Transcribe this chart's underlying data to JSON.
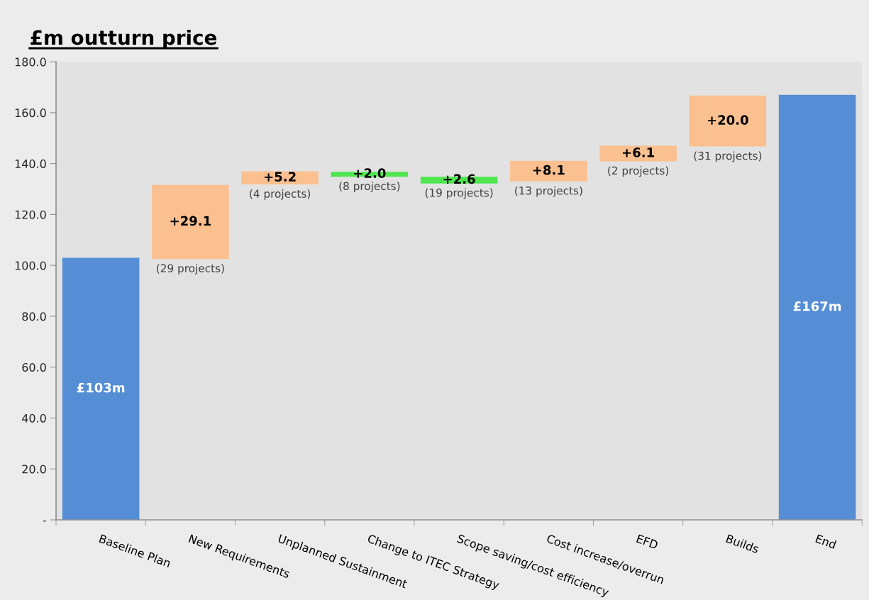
{
  "chart_data": {
    "type": "bar",
    "title": "£m outturn price",
    "categories": [
      "Baseline Plan",
      "New Requirements",
      "Unplanned Sustainment",
      "Change to ITEC Strategy",
      "Scope saving/cost efficiency",
      "Cost increase/overrun",
      "EFD",
      "Builds",
      "End"
    ],
    "values": [
      103,
      29.1,
      5.2,
      2.0,
      2.6,
      8.1,
      6.1,
      20.0,
      167
    ],
    "base": [
      0,
      102.5,
      131.8,
      134.8,
      132.2,
      133.0,
      140.9,
      146.7,
      0
    ],
    "colors": [
      "#558ed5",
      "#fac090",
      "#fac090",
      "#50e650",
      "#50e650",
      "#fac090",
      "#fac090",
      "#fac090",
      "#558ed5"
    ],
    "value_labels": [
      "£103m",
      "+29.1",
      "+5.2",
      "+2.0",
      "+2.6",
      "+8.1",
      "+6.1",
      "+20.0",
      "£167m"
    ],
    "annotations": [
      {
        "text": "(29 projects)",
        "x": "New Requirements",
        "y": 102.5
      },
      {
        "text": "(4 projects)",
        "x": "Unplanned Sustainment",
        "y": 131.8
      },
      {
        "text": "(8 projects)",
        "x": "Change to ITEC Strategy",
        "y": 134.8
      },
      {
        "text": "(19 projects)",
        "x": "Scope saving/cost efficiency",
        "y": 132.2
      },
      {
        "text": "(13 projects)",
        "x": "Cost increase/overrun",
        "y": 133.0
      },
      {
        "text": "(2 projects)",
        "x": "EFD",
        "y": 140.9
      },
      {
        "text": "(31 projects)",
        "x": "Builds",
        "y": 146.7
      }
    ],
    "ylim": [
      0,
      180
    ],
    "yticks": [
      {
        "value": 0,
        "label": "-"
      },
      {
        "value": 20,
        "label": "20.0"
      },
      {
        "value": 40,
        "label": "40.0"
      },
      {
        "value": 60,
        "label": "60.0"
      },
      {
        "value": 80,
        "label": "80.0"
      },
      {
        "value": 100,
        "label": "100.0"
      },
      {
        "value": 120,
        "label": "120.0"
      },
      {
        "value": 140,
        "label": "140.0"
      },
      {
        "value": 160,
        "label": "160.0"
      },
      {
        "value": 180,
        "label": "180.0"
      }
    ],
    "grid": false,
    "legend": false
  }
}
